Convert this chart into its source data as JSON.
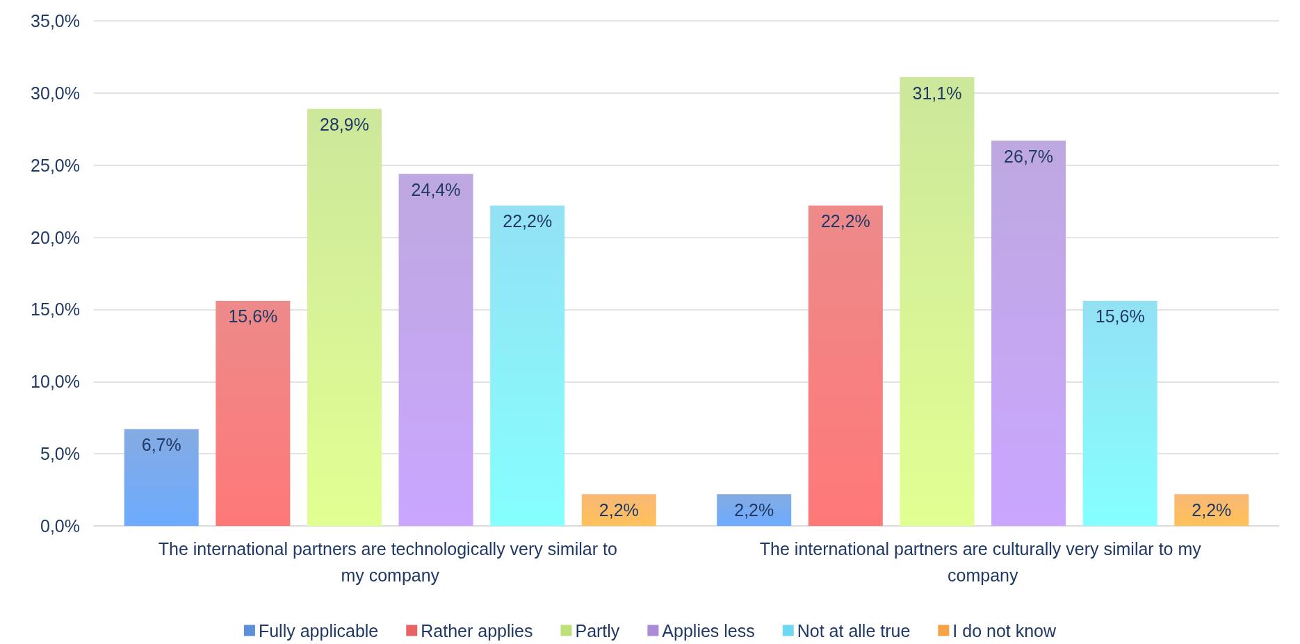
{
  "chart_data": {
    "type": "bar",
    "categories": [
      "The international partners are technologically very similar to my company",
      "The international partners are culturally very similar to my company"
    ],
    "series": [
      {
        "name": "Fully applicable",
        "color": "#5b8fd9",
        "values": [
          6.7,
          2.2
        ],
        "value_labels": [
          "6,7%",
          "2,2%"
        ]
      },
      {
        "name": "Rather applies",
        "color": "#e86464",
        "values": [
          15.6,
          22.2
        ],
        "value_labels": [
          "15,6%",
          "22,2%"
        ]
      },
      {
        "name": "Partly",
        "color": "#bde07a",
        "values": [
          28.9,
          31.1
        ],
        "value_labels": [
          "28,9%",
          "31,1%"
        ]
      },
      {
        "name": "Applies less",
        "color": "#a98bd6",
        "values": [
          24.4,
          26.7
        ],
        "value_labels": [
          "24,4%",
          "26,7%"
        ]
      },
      {
        "name": "Not at alle true",
        "color": "#6fd8f0",
        "values": [
          22.2,
          15.6
        ],
        "value_labels": [
          "22,2%",
          "15,6%"
        ]
      },
      {
        "name": "I do not know",
        "color": "#f7a14a",
        "values": [
          2.2,
          2.2
        ],
        "value_labels": [
          "2,2%",
          "2,2%"
        ]
      }
    ],
    "ylim": [
      0,
      35
    ],
    "yticks": [
      {
        "value": 0,
        "label": "0,0%"
      },
      {
        "value": 5,
        "label": "5,0%"
      },
      {
        "value": 10,
        "label": "10,0%"
      },
      {
        "value": 15,
        "label": "15,0%"
      },
      {
        "value": 20,
        "label": "20,0%"
      },
      {
        "value": 25,
        "label": "25,0%"
      },
      {
        "value": 30,
        "label": "30,0%"
      },
      {
        "value": 35,
        "label": "35,0%"
      }
    ],
    "grid": "y",
    "legend": "bottom"
  }
}
